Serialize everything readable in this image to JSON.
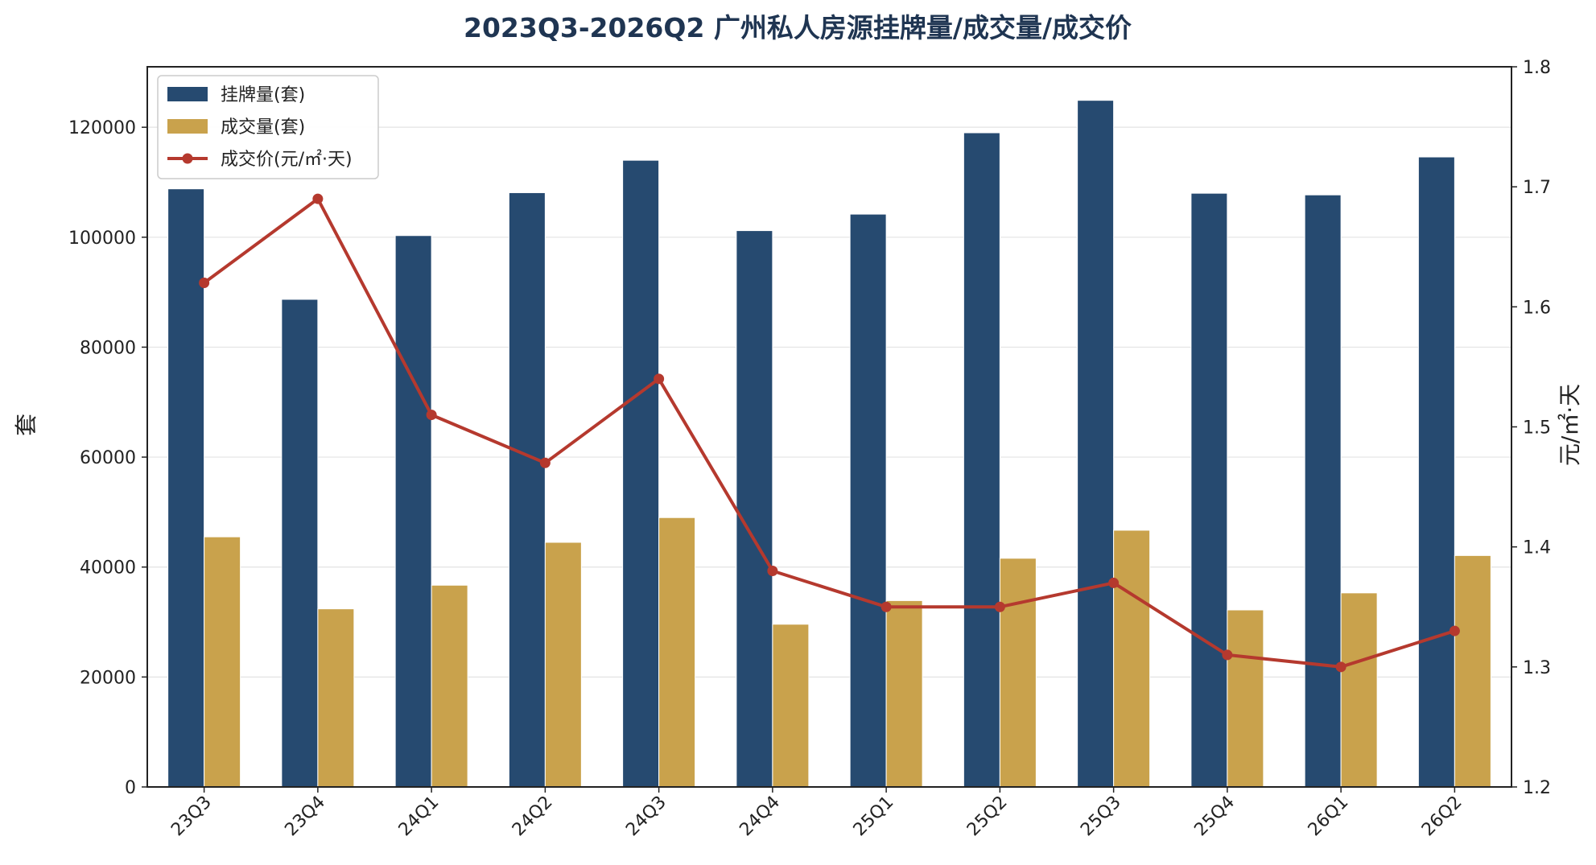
{
  "chart_data": {
    "type": "bar",
    "title": "2023Q3-2026Q2 广州私人房源挂牌量/成交量/成交价",
    "categories": [
      "23Q3",
      "23Q4",
      "24Q1",
      "24Q2",
      "24Q3",
      "24Q4",
      "25Q1",
      "25Q2",
      "25Q3",
      "25Q4",
      "26Q1",
      "26Q2"
    ],
    "series": [
      {
        "name": "挂牌量(套)",
        "type": "bar",
        "axis": "left",
        "color": "#264a70",
        "values": [
          108800,
          88700,
          100300,
          108100,
          114000,
          101200,
          104200,
          119000,
          124900,
          108000,
          107700,
          114600
        ]
      },
      {
        "name": "成交量(套)",
        "type": "bar",
        "axis": "left",
        "color": "#c9a24c",
        "values": [
          45500,
          32400,
          36700,
          44500,
          49000,
          29600,
          33900,
          41600,
          46700,
          32200,
          35300,
          42100
        ]
      },
      {
        "name": "成交价(元/㎡·天)",
        "type": "line",
        "axis": "right",
        "color": "#b5392e",
        "values": [
          1.62,
          1.69,
          1.51,
          1.47,
          1.54,
          1.38,
          1.35,
          1.35,
          1.37,
          1.31,
          1.3,
          1.33
        ]
      }
    ],
    "ylabel": "套",
    "y2label": "元/㎡·天",
    "ylim": [
      0,
      131000
    ],
    "y2lim": [
      1.2,
      1.8
    ],
    "yticks": [
      "0",
      "20000",
      "40000",
      "60000",
      "80000",
      "100000",
      "120000"
    ],
    "y2ticks": [
      "1.2",
      "1.3",
      "1.4",
      "1.5",
      "1.6",
      "1.7",
      "1.8"
    ],
    "grid": true,
    "legend_position": "top-left"
  }
}
